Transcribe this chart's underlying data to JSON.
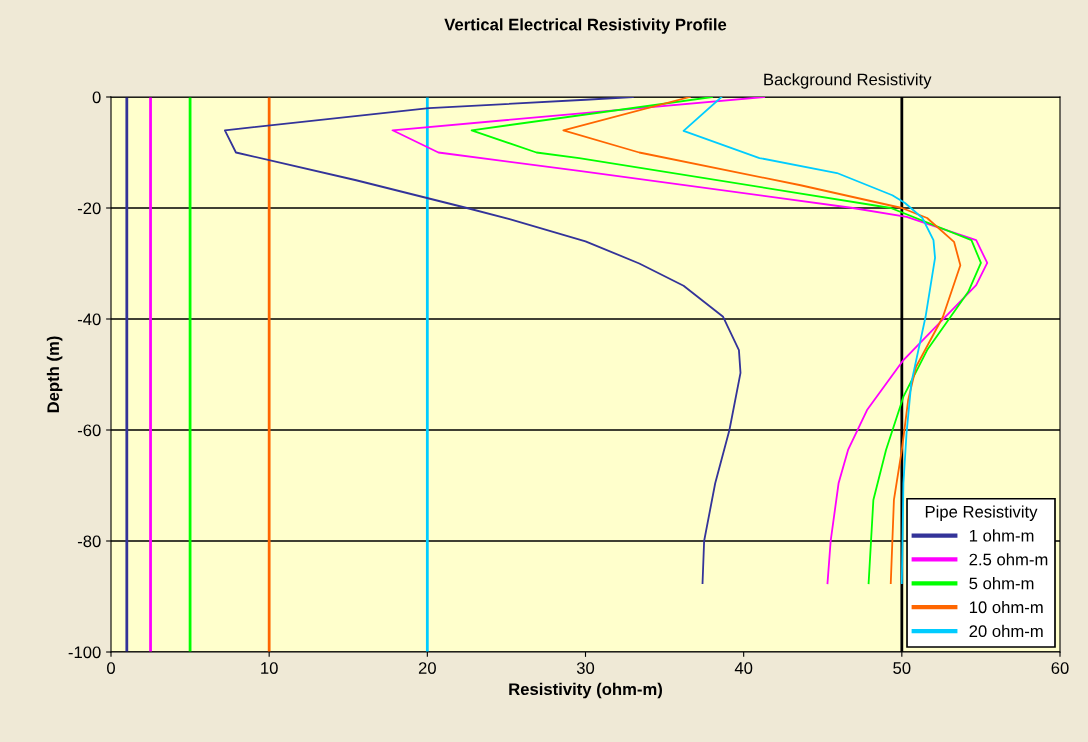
{
  "chart_data": {
    "type": "line",
    "title": "Vertical Electrical Resistivity Profile",
    "xlabel": "Resistivity (ohm-m)",
    "ylabel": "Depth (m)",
    "legend_title": "Pipe Resistivity",
    "legend": "bottom right",
    "grid": "y",
    "marker": "none",
    "line_style": "solid",
    "xlim": [
      0,
      60
    ],
    "xticks": [
      0,
      10,
      20,
      30,
      40,
      50,
      60
    ],
    "ylim": [
      -100,
      0
    ],
    "yticks": [
      -100,
      -80,
      -60,
      -40,
      -20,
      0
    ],
    "ref_lines": [
      {
        "axis": "x",
        "value": 50,
        "label": "Background Resistivity",
        "color": "#000000"
      },
      {
        "axis": "x",
        "value": 1,
        "label": null,
        "color": "#333399"
      },
      {
        "axis": "x",
        "value": 2.5,
        "label": null,
        "color": "#ff00ff"
      },
      {
        "axis": "x",
        "value": 5,
        "label": null,
        "color": "#00ff00"
      },
      {
        "axis": "x",
        "value": 10,
        "label": null,
        "color": "#ff6600"
      },
      {
        "axis": "x",
        "value": 20,
        "label": null,
        "color": "#00ccff"
      }
    ],
    "series": [
      {
        "name": "1 ohm-m",
        "color": "#333399",
        "x": [
          33,
          30,
          20.1,
          7.2,
          7.9,
          15.5,
          22.5,
          25.2,
          30.0,
          33.4,
          36.2,
          38.7,
          39.7,
          39.8,
          39.1,
          38.2,
          37.5,
          37.4
        ],
        "values": [
          0,
          -0.5,
          -2,
          -6,
          -10,
          -15,
          -20,
          -22,
          -26,
          -30,
          -34,
          -39.6,
          -45.6,
          -49.7,
          -60,
          -69.6,
          -80,
          -87.6
        ]
      },
      {
        "name": "2.5 ohm-m",
        "color": "#ff00ff",
        "x": [
          41.3,
          17.8,
          20.7,
          29.6,
          46.9,
          50.3,
          54.7,
          55.4,
          54.7,
          50.1,
          47.8,
          46.6,
          46.0,
          45.5,
          45.3
        ],
        "values": [
          0,
          -6,
          -10,
          -13.3,
          -20,
          -21.6,
          -25.8,
          -29.9,
          -33.9,
          -47.4,
          -56.4,
          -63.6,
          -69.6,
          -80,
          -87.6
        ]
      },
      {
        "name": "5 ohm-m",
        "color": "#00ff00",
        "x": [
          38,
          22.8,
          26.9,
          29.6,
          49.3,
          54.4,
          55.0,
          54.2,
          51.6,
          50.1,
          49.0,
          48.2,
          47.9
        ],
        "values": [
          0,
          -6,
          -10,
          -11,
          -20,
          -25.8,
          -29.9,
          -35.1,
          -45.6,
          -54,
          -63.6,
          -72.6,
          -87.6
        ]
      },
      {
        "name": "10 ohm-m",
        "color": "#ff6600",
        "x": [
          36.6,
          28.6,
          33.4,
          43.6,
          50.0,
          51.6,
          53.3,
          53.7,
          52.6,
          50.9,
          50.4,
          50.0,
          49.5,
          49.3
        ],
        "values": [
          0,
          -6,
          -10,
          -15.9,
          -20,
          -21.8,
          -26.1,
          -30.3,
          -39.6,
          -48.6,
          -54.6,
          -63.6,
          -72.6,
          -87.6
        ]
      },
      {
        "name": "20 ohm-m",
        "color": "#00ccff",
        "x": [
          38.6,
          36.2,
          41.0,
          45.9,
          49.4,
          50.2,
          51.3,
          52.0,
          52.1,
          51.5,
          50.6,
          50.3,
          50.1,
          50.0
        ],
        "values": [
          0,
          -6.1,
          -11,
          -13.7,
          -17.7,
          -19.1,
          -21.8,
          -25.8,
          -29,
          -39.6,
          -51.5,
          -60.5,
          -69.6,
          -87.6
        ]
      }
    ]
  }
}
